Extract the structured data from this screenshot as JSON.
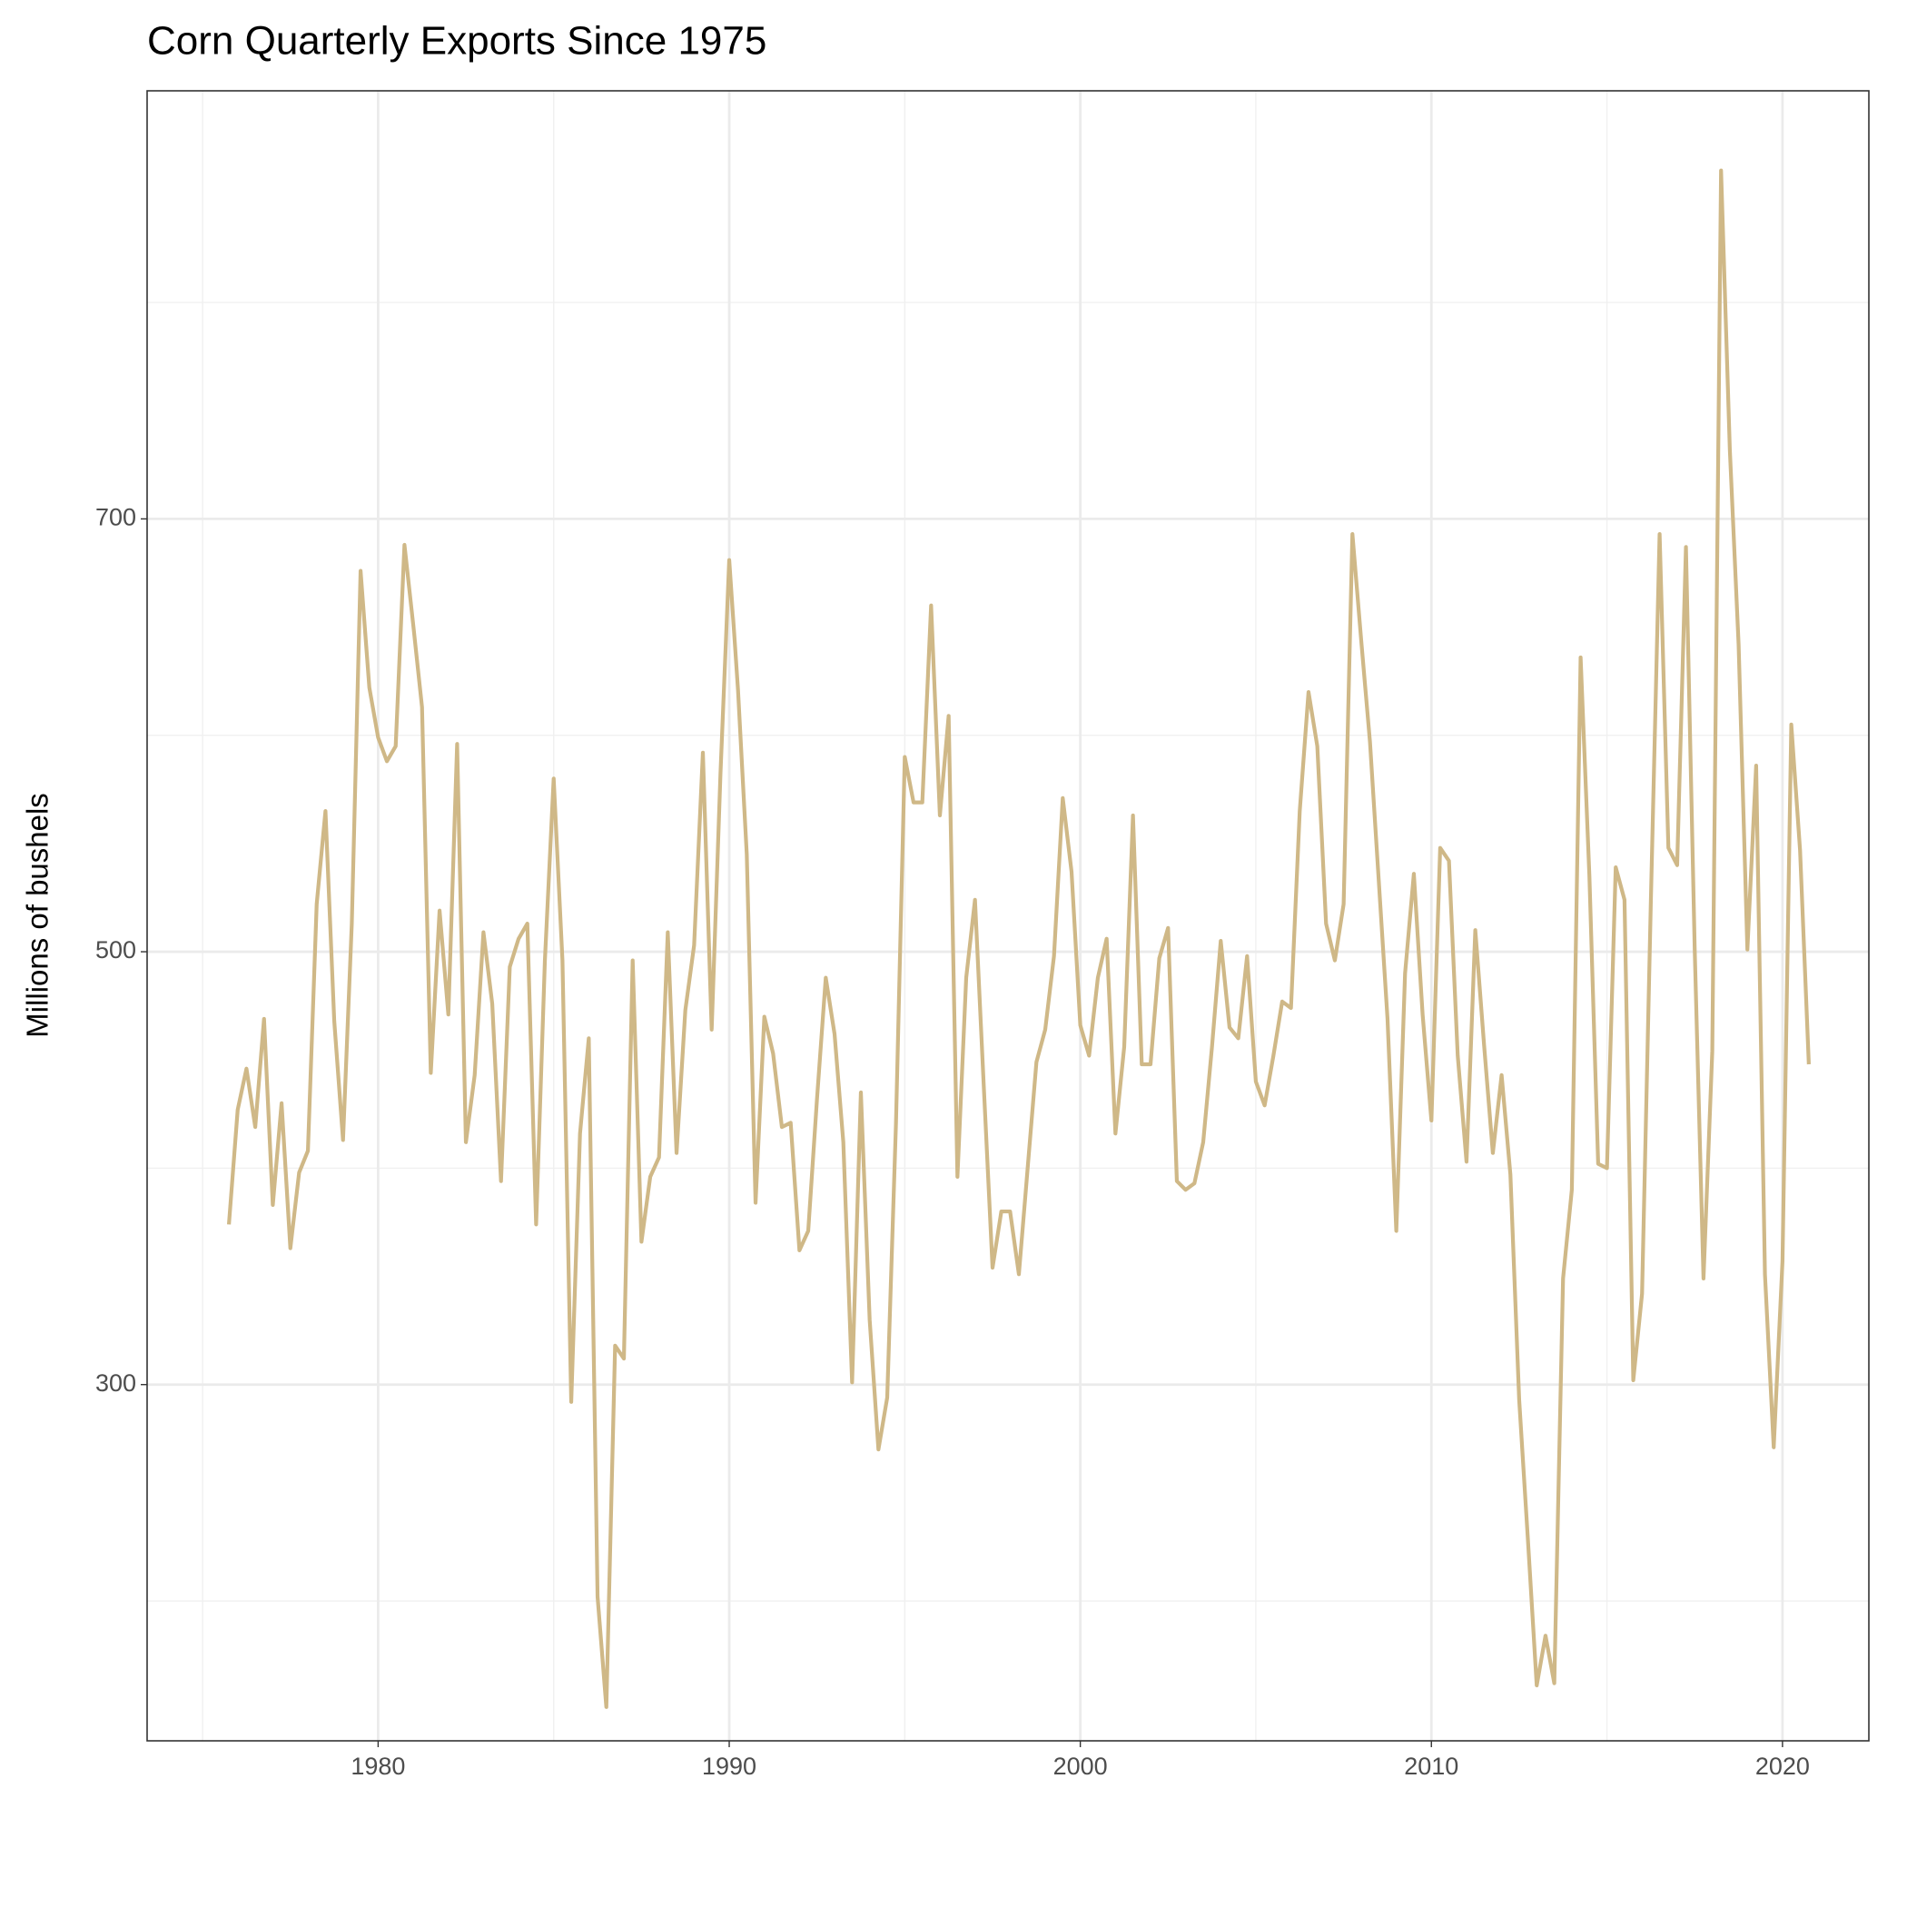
{
  "chart_data": {
    "type": "line",
    "title": "Corn Quarterly Exports Since 1975",
    "y_label": "Millions of bushels",
    "color": "#cfb887",
    "grid": true,
    "xlim": [
      1973.42,
      2022.46
    ],
    "ylim": [
      135.4,
      897.8
    ],
    "xticks": [
      1980,
      1990,
      2000,
      2010,
      2020
    ],
    "yticks": [
      300,
      500,
      700
    ],
    "minor_xticks": [
      1975,
      1985,
      1995,
      2005,
      2015
    ],
    "minor_yticks": [
      200,
      400,
      600,
      800
    ],
    "x": [
      1975.75,
      1976,
      1976.25,
      1976.5,
      1976.75,
      1977,
      1977.25,
      1977.5,
      1977.75,
      1978,
      1978.25,
      1978.5,
      1978.75,
      1979,
      1979.25,
      1979.5,
      1979.75,
      1980,
      1980.25,
      1980.5,
      1980.75,
      1981,
      1981.25,
      1981.5,
      1981.75,
      1982,
      1982.25,
      1982.5,
      1982.75,
      1983,
      1983.25,
      1983.5,
      1983.75,
      1984,
      1984.25,
      1984.5,
      1984.75,
      1985,
      1985.25,
      1985.5,
      1985.75,
      1986,
      1986.25,
      1986.5,
      1986.75,
      1987,
      1987.25,
      1987.5,
      1987.75,
      1988,
      1988.25,
      1988.5,
      1988.75,
      1989,
      1989.25,
      1989.5,
      1989.75,
      1990,
      1990.25,
      1990.5,
      1990.75,
      1991,
      1991.25,
      1991.5,
      1991.75,
      1992,
      1992.25,
      1992.5,
      1992.75,
      1993,
      1993.25,
      1993.5,
      1993.75,
      1994,
      1994.25,
      1994.5,
      1994.75,
      1995,
      1995.25,
      1995.5,
      1995.75,
      1996,
      1996.25,
      1996.5,
      1996.75,
      1997,
      1997.25,
      1997.5,
      1997.75,
      1998,
      1998.25,
      1998.5,
      1998.75,
      1999,
      1999.25,
      1999.5,
      1999.75,
      2000,
      2000.25,
      2000.5,
      2000.75,
      2001,
      2001.25,
      2001.5,
      2001.75,
      2002,
      2002.25,
      2002.5,
      2002.75,
      2003,
      2003.25,
      2003.5,
      2003.75,
      2004,
      2004.25,
      2004.5,
      2004.75,
      2005,
      2005.25,
      2005.5,
      2005.75,
      2006,
      2006.25,
      2006.5,
      2006.75,
      2007,
      2007.25,
      2007.5,
      2007.75,
      2008,
      2008.25,
      2008.5,
      2008.75,
      2009,
      2009.25,
      2009.5,
      2009.75,
      2010,
      2010.25,
      2010.5,
      2010.75,
      2011,
      2011.25,
      2011.5,
      2011.75,
      2012,
      2012.25,
      2012.5,
      2012.75,
      2013,
      2013.25,
      2013.5,
      2013.75,
      2014,
      2014.25,
      2014.5,
      2014.75,
      2015,
      2015.25,
      2015.5,
      2015.75,
      2016,
      2016.25,
      2016.5,
      2016.75,
      2017,
      2017.25,
      2017.5,
      2017.75,
      2018,
      2018.25,
      2018.5,
      2018.75,
      2019,
      2019.25,
      2019.5,
      2019.75,
      2020,
      2020.25,
      2020.5,
      2020.75
    ],
    "values": [
      374,
      427,
      446,
      419,
      469,
      383,
      430,
      363,
      398,
      408,
      522,
      565,
      468,
      413,
      513,
      676,
      622,
      599,
      588,
      595,
      688,
      651,
      613,
      444,
      519,
      471,
      596,
      412,
      443,
      509,
      476,
      394,
      493,
      506,
      513,
      374,
      496,
      580,
      496,
      292,
      416,
      460,
      202,
      151,
      318,
      312,
      496,
      366,
      396,
      405,
      509,
      407,
      473,
      503,
      592,
      464,
      582,
      681,
      621,
      545,
      384,
      470,
      453,
      419,
      421,
      362,
      371,
      432,
      488,
      462,
      412,
      301,
      435,
      330,
      270,
      294,
      421,
      590,
      569,
      569,
      660,
      563,
      609,
      396,
      488,
      524,
      438,
      354,
      380,
      380,
      351,
      400,
      449,
      464,
      498,
      571,
      537,
      466,
      452,
      488,
      506,
      416,
      456,
      563,
      448,
      448,
      497,
      511,
      394,
      390,
      393,
      412,
      456,
      505,
      465,
      460,
      498,
      440,
      429,
      452,
      477,
      474,
      565,
      620,
      595,
      513,
      496,
      522,
      693,
      644,
      597,
      533,
      469,
      371,
      490,
      536,
      471,
      422,
      548,
      542,
      452,
      403,
      510,
      457,
      407,
      443,
      397,
      293,
      228,
      161,
      184,
      162,
      349,
      390,
      636,
      535,
      402,
      400,
      539,
      524,
      302,
      342,
      523,
      693,
      548,
      540,
      687,
      501,
      349,
      454,
      861,
      732,
      642,
      501,
      586,
      351,
      271,
      357,
      605,
      547,
      448
    ]
  }
}
